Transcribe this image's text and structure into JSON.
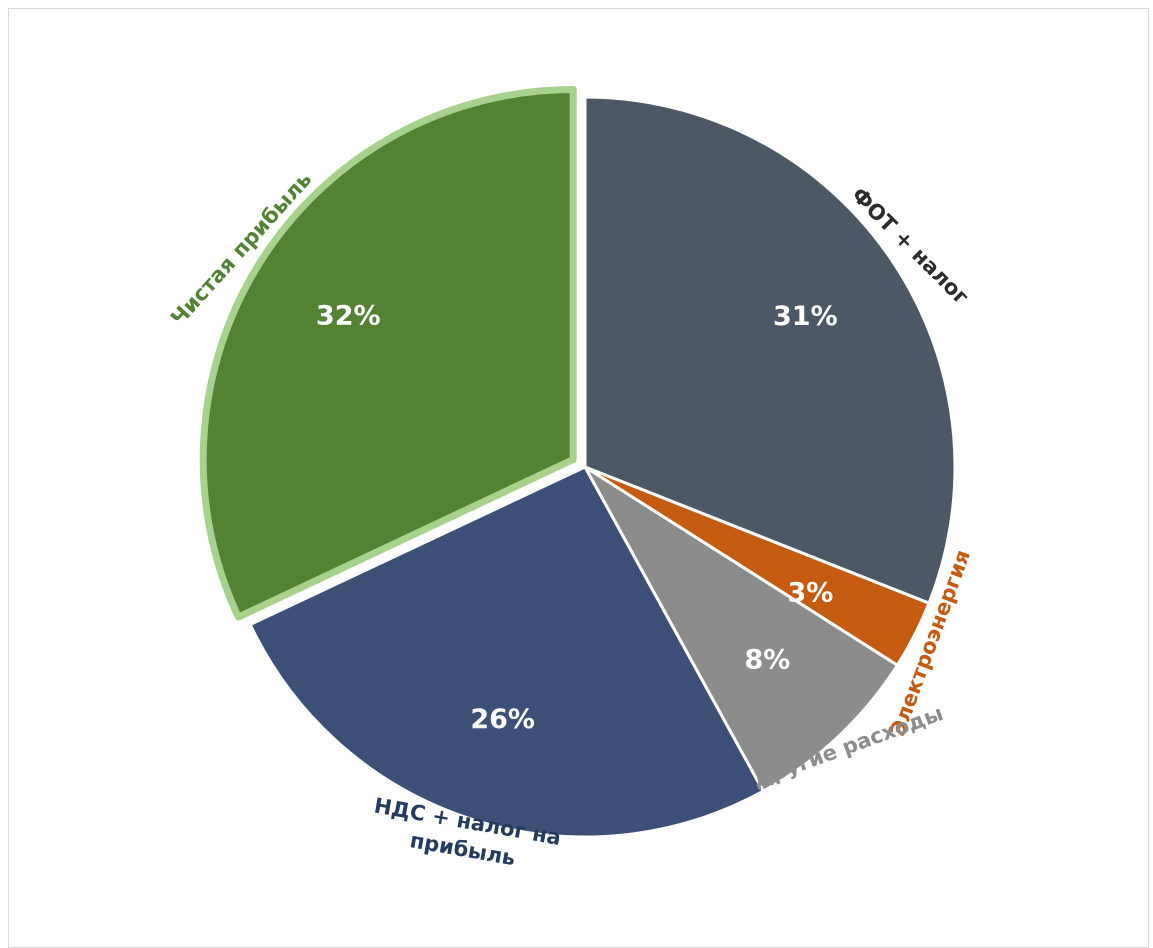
{
  "chart_data": {
    "type": "pie",
    "title": "",
    "legend": "none",
    "slices": [
      {
        "name": "ФОТ + налог",
        "value": 31,
        "label": "31%",
        "color": "#4d5866",
        "label_color": "#2b2b2b",
        "category_lines": [
          "ФОТ + налог"
        ]
      },
      {
        "name": "Электроэнергия",
        "value": 3,
        "label": "3%",
        "color": "#c55a11",
        "label_color": "#c55a11",
        "category_lines": [
          "Электроэнергия"
        ]
      },
      {
        "name": "Другие расходы",
        "value": 8,
        "label": "8%",
        "color": "#8c8c8c",
        "label_color": "#8c8c8c",
        "category_lines": [
          "Другие расходы"
        ]
      },
      {
        "name": "НДС + налог на прибыль",
        "value": 26,
        "label": "26%",
        "color": "#3c5077",
        "label_color": "#243a5e",
        "category_lines": [
          "НДС + налог на",
          "прибыль"
        ]
      },
      {
        "name": "Чистая прибыль",
        "value": 32,
        "label": "32%",
        "color": "#548235",
        "label_color": "#548235",
        "border_color": "#a9d18e",
        "exploded": true,
        "category_lines": [
          "Чистая прибыль"
        ]
      }
    ]
  }
}
